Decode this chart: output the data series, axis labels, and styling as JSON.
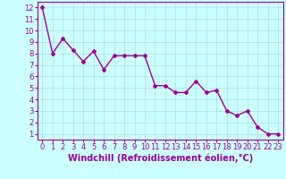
{
  "x": [
    0,
    1,
    2,
    3,
    4,
    5,
    6,
    7,
    8,
    9,
    10,
    11,
    12,
    13,
    14,
    15,
    16,
    17,
    18,
    19,
    20,
    21,
    22,
    23
  ],
  "y": [
    12.0,
    8.0,
    9.3,
    8.3,
    7.3,
    8.2,
    6.6,
    7.8,
    7.8,
    7.8,
    7.8,
    5.2,
    5.2,
    4.6,
    4.6,
    5.6,
    4.6,
    4.8,
    3.0,
    2.6,
    3.0,
    1.6,
    1.0,
    1.0
  ],
  "line_color": "#990099",
  "marker": "D",
  "marker_size": 2,
  "bg_color": "#ccffff",
  "grid_color": "#aadddd",
  "xlabel": "Windchill (Refroidissement éolien,°C)",
  "xlabel_color": "#990099",
  "xlabel_fontsize": 7,
  "ylabel_ticks": [
    1,
    2,
    3,
    4,
    5,
    6,
    7,
    8,
    9,
    10,
    11,
    12
  ],
  "xlim": [
    -0.5,
    23.5
  ],
  "ylim": [
    0.5,
    12.5
  ],
  "tick_fontsize": 6,
  "tick_color": "#990099",
  "line_width": 1.0,
  "axes_color": "#990099"
}
